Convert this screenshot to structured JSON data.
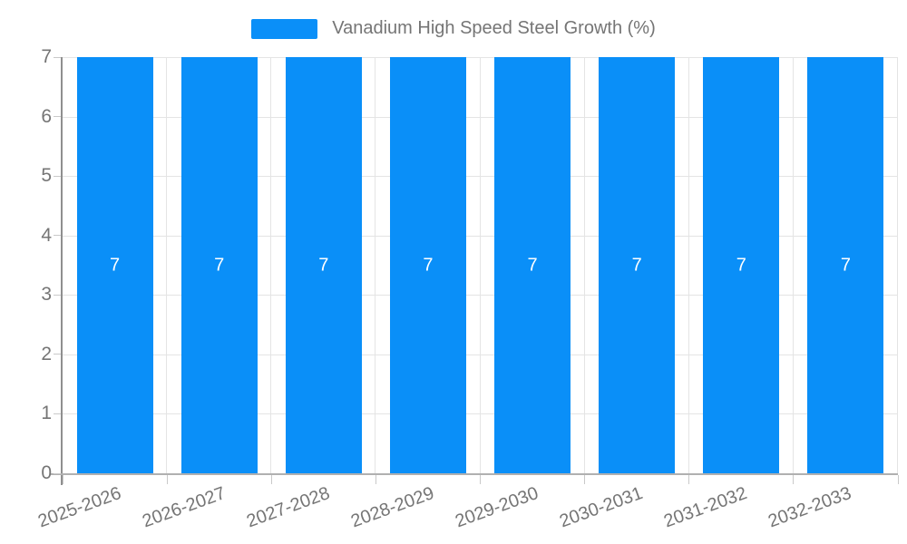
{
  "legend": {
    "label": "Vanadium High Speed Steel Growth (%)"
  },
  "chart_data": {
    "type": "bar",
    "title": "Vanadium High Speed Steel Growth (%)",
    "categories": [
      "2025-2026",
      "2026-2027",
      "2027-2028",
      "2028-2029",
      "2029-2030",
      "2030-2031",
      "2031-2032",
      "2032-2033"
    ],
    "values": [
      7,
      7,
      7,
      7,
      7,
      7,
      7,
      7
    ],
    "bar_value_labels": [
      "7",
      "7",
      "7",
      "7",
      "7",
      "7",
      "7",
      "7"
    ],
    "xlabel": "",
    "ylabel": "",
    "ylim": [
      0,
      7
    ],
    "yticks": [
      0,
      1,
      2,
      3,
      4,
      5,
      6,
      7
    ],
    "grid": true,
    "legend_position": "top",
    "colors": {
      "bar": "#0a8ff8",
      "value_label": "#ffffff",
      "axis_label": "#757575",
      "gridline": "#e4e4e4",
      "axis_line_y": "#8f8f8f",
      "axis_line_x": "#b0b0b0",
      "background": "#ffffff"
    }
  }
}
